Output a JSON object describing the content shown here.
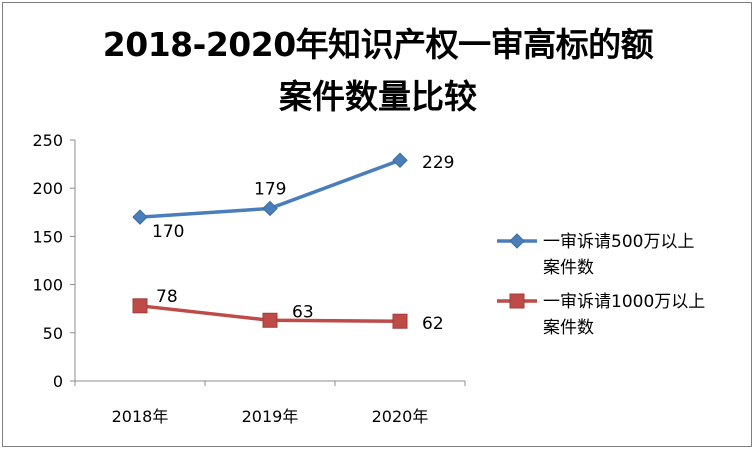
{
  "chart_data": {
    "type": "line",
    "title_line1": "2018-2020年知识产权一审高标的额",
    "title_line2": "案件数量比较",
    "categories": [
      "2018年",
      "2019年",
      "2020年"
    ],
    "ylim": [
      0,
      250
    ],
    "yticks": [
      "0",
      "50",
      "100",
      "150",
      "200",
      "250"
    ],
    "grid": false,
    "legend_position": "right",
    "series": [
      {
        "name_line1": "一审诉请500万以上",
        "name_line2": "案件数",
        "values": [
          170,
          179,
          229
        ],
        "labels": [
          "170",
          "179",
          "229"
        ],
        "color": "#4a7ebb",
        "marker": "diamond"
      },
      {
        "name_line1": "一审诉请1000万以上",
        "name_line2": "案件数",
        "values": [
          78,
          63,
          62
        ],
        "labels": [
          "78",
          "63",
          "62"
        ],
        "color": "#be4b48",
        "marker": "square"
      }
    ]
  }
}
